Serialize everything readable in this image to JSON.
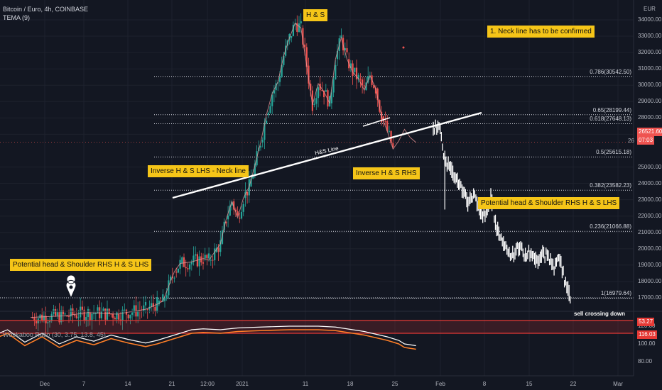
{
  "header": {
    "symbol_line": "Bitcoin / Euro, 4h, COINBASE",
    "indicator_line": "TEMA (9)",
    "osc_label": "Wookaboo Ratio (30, 3.75, 13.8, 45)"
  },
  "currency": "EUR",
  "annotations": {
    "hs_top": "H & S",
    "neck_note": "1. Neck line has to be confirmed",
    "inverse_lhs": "Inverse H & S  LHS - Neck line",
    "inverse_rhs": "Inverse H & S  RHS",
    "potential_right": "Potential head & Shoulder RHS H & S  LHS",
    "potential_left": "Potential head & Shoulder RHS H & S  LHS",
    "hs_line": "H&S Line",
    "sell_crossing": "sell crossing down"
  },
  "fib_levels": [
    {
      "label": "0.786(30542.50)",
      "price": 30542.5
    },
    {
      "label": "0.65(28199.44)",
      "price": 28199.44
    },
    {
      "label": "0.618(27648.13)",
      "price": 27648.13
    },
    {
      "label": "0.5(25615.18)",
      "price": 25615.18
    },
    {
      "label": "0.382(23582.23)",
      "price": 23582.23
    },
    {
      "label": "0.236(21066.88)",
      "price": 21066.88
    },
    {
      "label": "1(16979.64)",
      "price": 16979.64
    }
  ],
  "price_tags": {
    "last": "26521.60",
    "countdown": "07:03",
    "partial": "26",
    "osc_top": "53.27",
    "osc_bottom": "116.03"
  },
  "colors": {
    "background": "#131722",
    "up": "#26a69a",
    "down": "#ef5350",
    "note_bg": "#f5c518",
    "tema": "#f3a0a0",
    "osc_line": "#ff7f27",
    "osc_band": "#e53935",
    "projection": "#ffffff"
  },
  "chart_data": [
    {
      "type": "candlestick",
      "title": "Bitcoin / Euro, 4h, COINBASE",
      "ylabel": "EUR",
      "y_ticks": [
        "34000.00",
        "33000.00",
        "32000.00",
        "31000.00",
        "30000.00",
        "29000.00",
        "28000.00",
        "27000.00",
        "25000.00",
        "24000.00",
        "23000.00",
        "22000.00",
        "21000.00",
        "20000.00",
        "19000.00",
        "18000.00",
        "17000.00"
      ],
      "x_ticks": [
        "Dec",
        "7",
        "14",
        "21",
        "12:00",
        "2021",
        "11",
        "18",
        "25",
        "Feb",
        "8",
        "15",
        "22",
        "Mar"
      ],
      "ylim": [
        16400,
        34000
      ],
      "close_path_day_price": [
        [
          -20,
          15800
        ],
        [
          -14,
          15900
        ],
        [
          -10,
          16100
        ],
        [
          -5,
          16000
        ],
        [
          0,
          16300
        ],
        [
          2,
          16600
        ],
        [
          3,
          16800
        ],
        [
          5,
          18600
        ],
        [
          6,
          19100
        ],
        [
          8,
          19200
        ],
        [
          10,
          19400
        ],
        [
          11,
          19300
        ],
        [
          12,
          19800
        ],
        [
          13,
          20300
        ],
        [
          14,
          21800
        ],
        [
          15,
          22900
        ],
        [
          16,
          21900
        ],
        [
          17,
          23100
        ],
        [
          18,
          23800
        ],
        [
          19,
          25100
        ],
        [
          20,
          26500
        ],
        [
          21,
          28200
        ],
        [
          22,
          29500
        ],
        [
          23,
          30200
        ],
        [
          24,
          31800
        ],
        [
          25,
          32900
        ],
        [
          26,
          33800
        ],
        [
          27,
          33500
        ],
        [
          28,
          31200
        ],
        [
          29,
          28800
        ],
        [
          30,
          30100
        ],
        [
          31,
          29600
        ],
        [
          32,
          28900
        ],
        [
          33,
          31600
        ],
        [
          34,
          32900
        ],
        [
          35,
          31600
        ],
        [
          36,
          30800
        ],
        [
          37,
          30400
        ],
        [
          38,
          29700
        ],
        [
          39,
          30600
        ],
        [
          40,
          29800
        ],
        [
          41,
          28100
        ],
        [
          42,
          27200
        ],
        [
          43,
          26100
        ],
        [
          44,
          26600
        ],
        [
          45,
          27300
        ],
        [
          46,
          26800
        ],
        [
          47,
          26500
        ]
      ],
      "projection_day_price": [
        [
          50,
          27400
        ],
        [
          51,
          27600
        ],
        [
          52,
          25500
        ],
        [
          53,
          24900
        ],
        [
          54,
          24300
        ],
        [
          55,
          23600
        ],
        [
          56,
          22800
        ],
        [
          57,
          23400
        ],
        [
          58,
          22300
        ],
        [
          59,
          21900
        ],
        [
          60,
          23200
        ],
        [
          61,
          21300
        ],
        [
          62,
          20500
        ],
        [
          63,
          19900
        ],
        [
          64,
          19600
        ],
        [
          65,
          20100
        ],
        [
          66,
          19600
        ],
        [
          67,
          19800
        ],
        [
          68,
          19200
        ],
        [
          69,
          19700
        ],
        [
          70,
          19500
        ],
        [
          71,
          18900
        ],
        [
          72,
          19300
        ],
        [
          73,
          17900
        ],
        [
          74,
          16900
        ]
      ],
      "neck_line_day_price": [
        [
          -3,
          22800
        ],
        [
          62,
          27600
        ]
      ]
    },
    {
      "type": "line",
      "title": "Wookaboo Ratio (30, 3.75, 13.8, 45)",
      "y_ticks": [
        "120.00",
        "100.00",
        "80.00"
      ],
      "thresholds": [
        53.27,
        116.03
      ],
      "values_day": [
        [
          -40,
          96
        ],
        [
          -36,
          114
        ],
        [
          -33,
          104
        ],
        [
          -30,
          118
        ],
        [
          -27,
          108
        ],
        [
          -24,
          116
        ],
        [
          -21,
          102
        ],
        [
          -18,
          112
        ],
        [
          -15,
          100
        ],
        [
          -12,
          108
        ],
        [
          -9,
          103
        ],
        [
          -6,
          110
        ],
        [
          -3,
          105
        ],
        [
          0,
          101
        ],
        [
          2,
          104
        ],
        [
          4,
          108
        ],
        [
          6,
          112
        ],
        [
          8,
          116
        ],
        [
          10,
          117
        ],
        [
          13,
          116
        ],
        [
          16,
          118
        ],
        [
          20,
          119
        ],
        [
          25,
          120
        ],
        [
          30,
          120
        ],
        [
          33,
          119
        ],
        [
          36,
          116
        ],
        [
          38,
          114
        ],
        [
          40,
          111
        ],
        [
          42,
          108
        ],
        [
          44,
          104
        ],
        [
          45,
          100
        ],
        [
          46,
          99
        ],
        [
          47,
          98
        ]
      ]
    }
  ]
}
